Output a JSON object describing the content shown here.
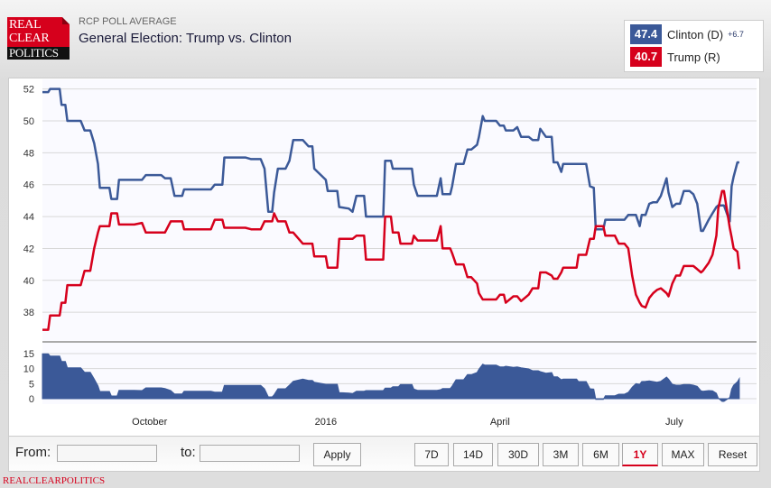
{
  "header": {
    "logo_text": [
      "REAL",
      "CLEAR",
      "POLITICS"
    ],
    "subtitle": "RCP POLL AVERAGE",
    "title": "General Election: Trump vs. Clinton"
  },
  "legend": [
    {
      "value": "47.4",
      "name": "Clinton (D)",
      "spread": "+6.7",
      "color": "#3b5998"
    },
    {
      "value": "40.7",
      "name": "Trump (R)",
      "spread": "",
      "color": "#d6001c"
    }
  ],
  "toolbar": {
    "from_label": "From:",
    "from_value": "",
    "to_label": "to:",
    "to_value": "",
    "apply_label": "Apply",
    "ranges": [
      "7D",
      "14D",
      "30D",
      "3M",
      "6M",
      "1Y",
      "MAX"
    ],
    "selected_range": "1Y",
    "reset_label": "Reset"
  },
  "footer": "REALCLEARPOLITICS",
  "chart_data": [
    {
      "type": "line",
      "xlim": [
        "2015-08-06",
        "2016-08-13"
      ],
      "ylim": [
        36.2,
        52.6
      ],
      "yticks": [
        38,
        40,
        42,
        44,
        46,
        48,
        50,
        52
      ],
      "grid": true,
      "xticks": [
        {
          "date": "2015-10-01",
          "label": "October"
        },
        {
          "date": "2016-01-01",
          "label": "2016"
        },
        {
          "date": "2016-04-01",
          "label": "April"
        },
        {
          "date": "2016-07-01",
          "label": "July"
        }
      ],
      "x": [
        "2015-08-06",
        "2015-08-09",
        "2015-08-10",
        "2015-08-15",
        "2015-08-16",
        "2015-08-18",
        "2015-08-19",
        "2015-08-26",
        "2015-08-28",
        "2015-08-31",
        "2015-09-02",
        "2015-09-04",
        "2015-09-05",
        "2015-09-10",
        "2015-09-11",
        "2015-09-14",
        "2015-09-15",
        "2015-09-23",
        "2015-09-27",
        "2015-09-29",
        "2015-10-07",
        "2015-10-09",
        "2015-10-12",
        "2015-10-14",
        "2015-10-18",
        "2015-10-19",
        "2015-11-02",
        "2015-11-04",
        "2015-11-08",
        "2015-11-09",
        "2015-11-20",
        "2015-11-23",
        "2015-11-28",
        "2015-11-30",
        "2015-12-02",
        "2015-12-04",
        "2015-12-05",
        "2015-12-07",
        "2015-12-11",
        "2015-12-13",
        "2015-12-15",
        "2015-12-20",
        "2015-12-23",
        "2015-12-25",
        "2015-12-26",
        "2016-01-01",
        "2016-01-02",
        "2016-01-07",
        "2016-01-08",
        "2016-01-13",
        "2016-01-15",
        "2016-01-17",
        "2016-01-21",
        "2016-01-22",
        "2016-01-31",
        "2016-02-01",
        "2016-02-04",
        "2016-02-05",
        "2016-02-08",
        "2016-02-09",
        "2016-02-15",
        "2016-02-16",
        "2016-02-18",
        "2016-02-28",
        "2016-03-01",
        "2016-03-02",
        "2016-03-06",
        "2016-03-07",
        "2016-03-09",
        "2016-03-13",
        "2016-03-15",
        "2016-03-17",
        "2016-03-20",
        "2016-03-21",
        "2016-03-23",
        "2016-03-24",
        "2016-03-30",
        "2016-04-01",
        "2016-04-03",
        "2016-04-04",
        "2016-04-08",
        "2016-04-10",
        "2016-04-12",
        "2016-04-16",
        "2016-04-18",
        "2016-04-21",
        "2016-04-22",
        "2016-04-25",
        "2016-04-28",
        "2016-04-29",
        "2016-05-01",
        "2016-05-03",
        "2016-05-04",
        "2016-05-11",
        "2016-05-12",
        "2016-05-16",
        "2016-05-18",
        "2016-05-20",
        "2016-05-21",
        "2016-05-25",
        "2016-05-26",
        "2016-05-31",
        "2016-06-02",
        "2016-06-05",
        "2016-06-07",
        "2016-06-09",
        "2016-06-11",
        "2016-06-13",
        "2016-06-14",
        "2016-06-16",
        "2016-06-18",
        "2016-06-20",
        "2016-06-22",
        "2016-06-24",
        "2016-06-27",
        "2016-06-28",
        "2016-06-30",
        "2016-07-02",
        "2016-07-04",
        "2016-07-06",
        "2016-07-09",
        "2016-07-11",
        "2016-07-13",
        "2016-07-15",
        "2016-07-16",
        "2016-07-19",
        "2016-07-21",
        "2016-07-23",
        "2016-07-24",
        "2016-07-26",
        "2016-07-27",
        "2016-07-30",
        "2016-07-31",
        "2016-08-01",
        "2016-08-03",
        "2016-08-04"
      ],
      "series": [
        {
          "name": "Clinton (D)",
          "color": "#3b5998",
          "values": [
            51.8,
            51.8,
            52.0,
            52.0,
            51.0,
            51.0,
            50.0,
            50.0,
            49.4,
            49.4,
            48.6,
            47.3,
            45.8,
            45.8,
            45.1,
            45.1,
            46.3,
            46.3,
            46.3,
            46.6,
            46.6,
            46.4,
            46.4,
            45.3,
            45.3,
            45.7,
            45.7,
            46.0,
            46.0,
            47.7,
            47.7,
            47.6,
            47.6,
            47.0,
            44.3,
            44.3,
            45.5,
            47.0,
            47.0,
            47.5,
            48.8,
            48.8,
            48.4,
            48.4,
            47.0,
            46.3,
            45.6,
            45.6,
            44.6,
            44.5,
            44.3,
            45.3,
            45.3,
            44.0,
            44.0,
            47.5,
            47.5,
            47.0,
            47.0,
            47.0,
            47.0,
            46.0,
            45.3,
            45.3,
            46.4,
            45.4,
            45.4,
            45.9,
            47.3,
            47.3,
            48.2,
            48.2,
            48.5,
            49.0,
            50.3,
            50.0,
            50.0,
            49.7,
            49.7,
            49.4,
            49.4,
            49.6,
            49.0,
            49.0,
            48.8,
            48.8,
            49.5,
            49.0,
            49.0,
            47.4,
            47.4,
            46.8,
            47.3,
            47.3,
            47.3,
            47.3,
            45.9,
            45.8,
            43.2,
            43.2,
            43.8,
            43.8,
            43.8,
            43.8,
            44.1,
            44.1,
            44.1,
            43.4,
            44.1,
            44.1,
            44.8,
            44.9,
            44.9,
            45.3,
            46.4,
            45.5,
            44.6,
            44.8,
            44.8,
            45.6,
            45.6,
            45.4,
            44.8,
            43.1,
            43.1,
            43.8,
            44.2,
            44.6,
            44.7,
            44.7,
            44.7,
            43.7,
            45.9,
            46.5,
            47.4,
            47.4
          ]
        },
        {
          "name": "Trump (R)",
          "color": "#d6001c",
          "values": [
            36.9,
            36.9,
            37.8,
            37.8,
            38.6,
            38.6,
            39.7,
            39.7,
            40.6,
            40.6,
            42.0,
            43.0,
            43.4,
            43.4,
            44.2,
            44.2,
            43.5,
            43.5,
            43.6,
            43.0,
            43.0,
            43.0,
            43.7,
            43.7,
            43.7,
            43.2,
            43.2,
            43.8,
            43.8,
            43.3,
            43.3,
            43.2,
            43.2,
            43.7,
            43.7,
            43.7,
            44.2,
            43.7,
            43.7,
            43.0,
            43.0,
            42.3,
            42.3,
            42.3,
            41.5,
            41.5,
            40.8,
            40.8,
            42.6,
            42.6,
            42.6,
            42.8,
            42.8,
            41.3,
            41.3,
            44.0,
            44.0,
            43.0,
            43.0,
            42.3,
            42.3,
            42.8,
            42.5,
            42.5,
            43.4,
            42.0,
            42.0,
            41.7,
            41.0,
            41.0,
            40.2,
            40.2,
            39.8,
            39.2,
            38.8,
            38.8,
            38.8,
            39.1,
            39.1,
            38.6,
            39.0,
            39.0,
            38.7,
            39.1,
            39.5,
            39.5,
            40.5,
            40.5,
            40.3,
            40.1,
            40.1,
            40.5,
            40.8,
            40.8,
            41.6,
            41.6,
            42.6,
            42.6,
            43.4,
            43.4,
            42.8,
            42.8,
            42.3,
            42.3,
            42.0,
            40.3,
            39.1,
            38.6,
            38.4,
            38.3,
            38.9,
            39.2,
            39.4,
            39.5,
            39.2,
            39.0,
            39.8,
            40.3,
            40.3,
            40.9,
            40.9,
            40.9,
            40.7,
            40.5,
            40.6,
            41.1,
            41.6,
            42.8,
            44.5,
            45.6,
            45.6,
            43.3,
            42.7,
            42.0,
            41.8,
            40.7
          ]
        }
      ]
    },
    {
      "type": "area",
      "series_formula": "Clinton (D) minus Trump (R)",
      "ylim": [
        -1.8,
        18.6
      ],
      "yticks": [
        0,
        5,
        10,
        15
      ],
      "grid": true,
      "color": "#3b5998"
    }
  ]
}
